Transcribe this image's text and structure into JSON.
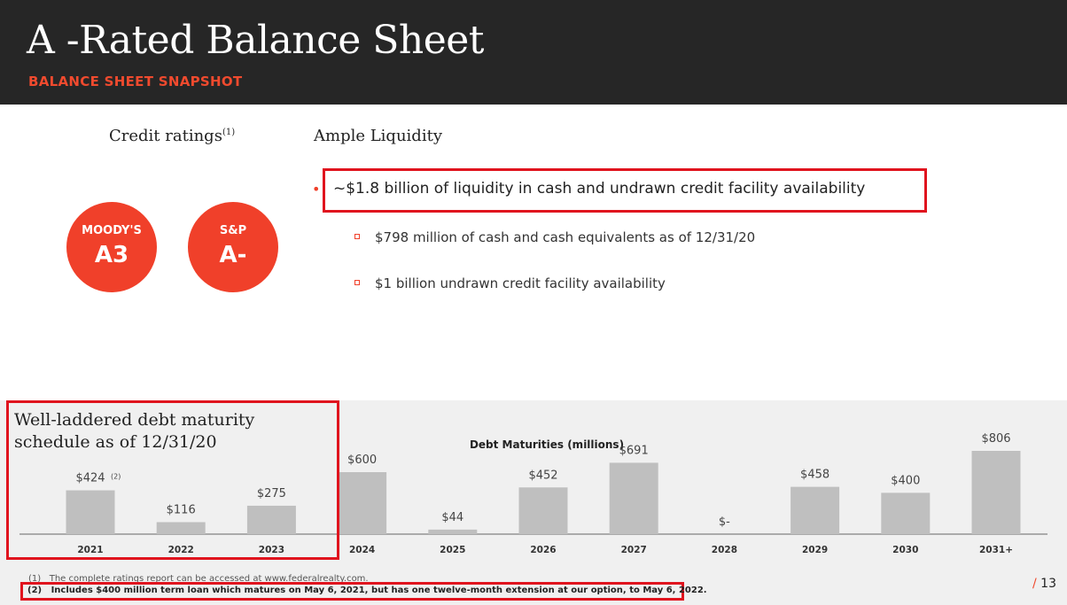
{
  "header": {
    "title": "A -Rated Balance Sheet",
    "subtitle": "BALANCE SHEET SNAPSHOT"
  },
  "credit": {
    "heading": "Credit ratings",
    "heading_sup": "(1)",
    "ratings": [
      {
        "agency": "MOODY'S",
        "value": "A3"
      },
      {
        "agency": "S&P",
        "value": "A-"
      }
    ]
  },
  "liquidity": {
    "heading": "Ample Liquidity",
    "main": "~$1.8 billion of liquidity in cash and undrawn credit facility availability",
    "sub_items": [
      "$798 million of cash and cash equivalents as of 12/31/20",
      "$1 billion undrawn credit facility availability"
    ]
  },
  "maturity": {
    "heading": "Well-laddered debt maturity schedule as of 12/31/20"
  },
  "chart_data": {
    "type": "bar",
    "title": "Debt Maturities (millions)",
    "categories": [
      "2021",
      "2022",
      "2023",
      "2024",
      "2025",
      "2026",
      "2027",
      "2028",
      "2029",
      "2030",
      "2031+"
    ],
    "values": [
      424,
      116,
      275,
      600,
      44,
      452,
      691,
      0,
      458,
      400,
      806
    ],
    "data_labels": [
      "$424",
      "$116",
      "$275",
      "$600",
      "$44",
      "$452",
      "$691",
      "$-",
      "$458",
      "$400",
      "$806"
    ],
    "label_notes": [
      "(2)",
      "",
      "",
      "",
      "",
      "",
      "",
      "",
      "",
      "",
      ""
    ],
    "bar_color": "#bfbfbf",
    "ylim": [
      0,
      806
    ]
  },
  "footnotes": [
    {
      "num": "(1)",
      "text": "The complete ratings report can be accessed at www.federalrealty.com."
    },
    {
      "num": "(2)",
      "text": "Includes $400 million term loan which matures on May 6, 2021, but has one twelve-month extension at our option, to May 6, 2022."
    }
  ],
  "page": {
    "slash": "/",
    "number": "13"
  },
  "colors": {
    "accent": "#f0402a",
    "header_bg": "#262626",
    "highlight": "#e0141e"
  }
}
